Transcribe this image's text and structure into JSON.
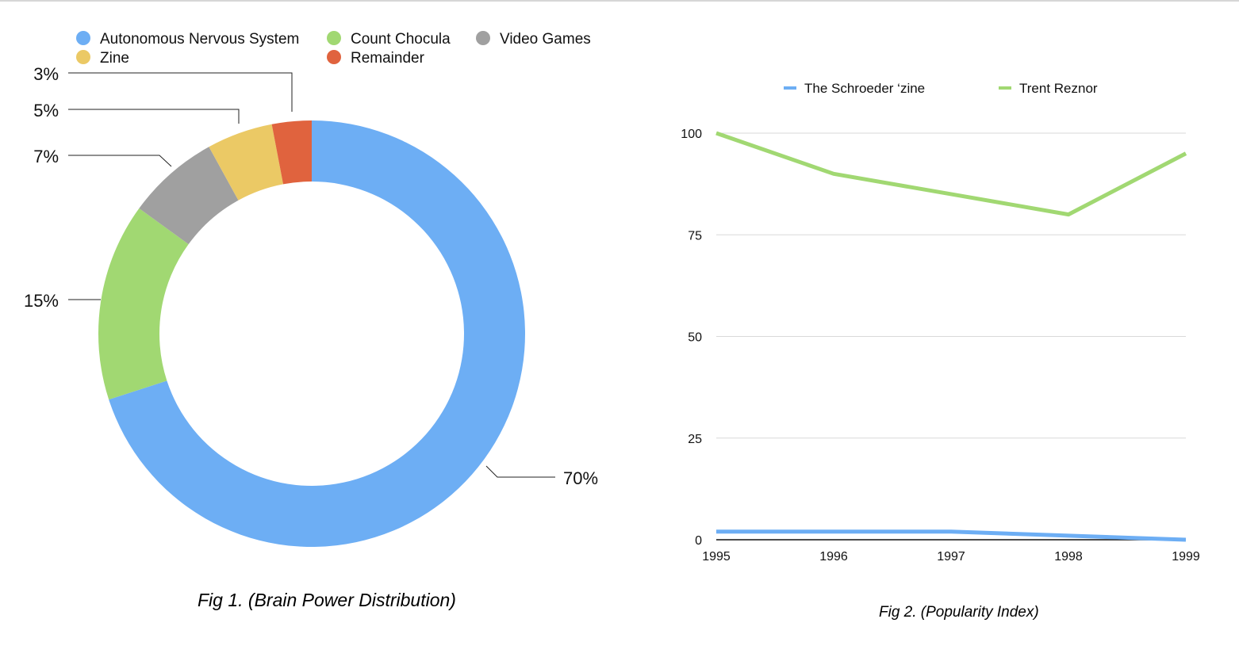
{
  "chart_data": [
    {
      "type": "donut",
      "caption": "Fig 1. (Brain Power Distribution)",
      "legend_position": "top-left",
      "slices": [
        {
          "label": "Autonomous Nervous System",
          "value": 70,
          "display": "70%",
          "color": "#6daef4"
        },
        {
          "label": "Count Chocula",
          "value": 15,
          "display": "15%",
          "color": "#a1d872"
        },
        {
          "label": "Video Games",
          "value": 7,
          "display": "7%",
          "color": "#a0a0a0"
        },
        {
          "label": "Zine",
          "value": 5,
          "display": "5%",
          "color": "#ebc965"
        },
        {
          "label": "Remainder",
          "value": 3,
          "display": "3%",
          "color": "#e0633e"
        }
      ]
    },
    {
      "type": "line",
      "caption": "Fig 2. (Popularity Index)",
      "legend_position": "top",
      "grid": true,
      "x": [
        "1995",
        "1996",
        "1997",
        "1998",
        "1999"
      ],
      "ylim": [
        0,
        100
      ],
      "yticks": [
        "0",
        "25",
        "50",
        "75",
        "100"
      ],
      "series": [
        {
          "name": "The Schroeder ‘zine",
          "color": "#6daef4",
          "values": [
            2,
            2,
            2,
            1,
            0
          ]
        },
        {
          "name": "Trent Reznor",
          "color": "#a1d872",
          "values": [
            100,
            90,
            85,
            80,
            95
          ]
        }
      ]
    }
  ]
}
